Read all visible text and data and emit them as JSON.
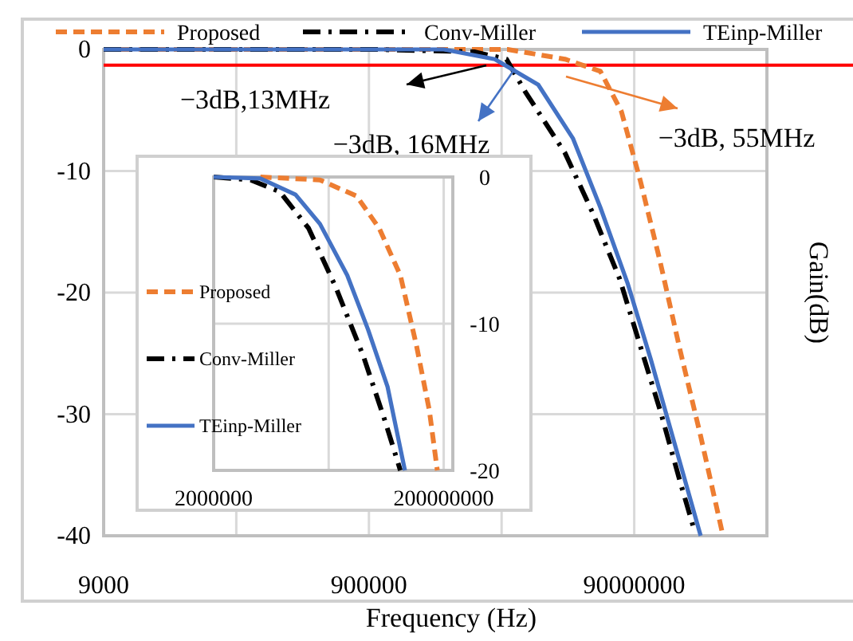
{
  "chart_data": [
    {
      "type": "line",
      "xlabel": "Frequency (Hz)",
      "ylabel": "Gain(dB)",
      "log": "x",
      "grid": true,
      "legend": "top",
      "xlim": [
        9000,
        900000000
      ],
      "xticks": [
        9000,
        {
          "value": 90000,
          "label": null
        },
        900000,
        {
          "value": 9000000,
          "label": null
        },
        90000000,
        {
          "value": 900000000,
          "label": null
        }
      ],
      "ylim": [
        -40,
        0
      ],
      "yticks": [
        0,
        -10,
        -20,
        -30,
        -40
      ],
      "ref_lines": [
        {
          "axis": "y",
          "value": -1.3,
          "color": "#ff0000"
        }
      ],
      "annotations": [
        "−3dB,13MHz",
        "−3dB, 16MHz",
        "−3dB, 55MHz"
      ],
      "series": [
        {
          "name": "Proposed",
          "color": "#ed7d31",
          "line_style": "dashed",
          "x": [
            9000,
            1000000,
            10000000,
            27000000,
            50000000,
            72000000,
            100000000,
            140000000,
            200000000,
            285000000,
            420000000
          ],
          "values": [
            0,
            0,
            0,
            -0.8,
            -1.8,
            -5.1,
            -10.8,
            -17.3,
            -24.8,
            -31.8,
            -40
          ]
        },
        {
          "name": "Conv-Miller",
          "color": "#000000",
          "line_style": "dashdot",
          "x": [
            9000,
            1000000,
            5600000,
            9800000,
            13600000,
            27000000,
            44000000,
            70000000,
            100000000,
            143000000,
            200000000,
            250000000
          ],
          "values": [
            0,
            0,
            -0.2,
            -0.8,
            -3.5,
            -8.5,
            -13.5,
            -18.9,
            -24.4,
            -29.9,
            -35.6,
            -39.2
          ]
        },
        {
          "name": "TEinp-Miller",
          "color": "#4472c4",
          "line_style": "solid",
          "x": [
            9000,
            1000000,
            3300000,
            8000000,
            17000000,
            31000000,
            50000000,
            80000000,
            120000000,
            180000000,
            285000000
          ],
          "values": [
            0,
            0,
            0,
            -0.8,
            -2.9,
            -7.3,
            -13,
            -19.2,
            -25.5,
            -32.3,
            -40
          ]
        }
      ]
    },
    {
      "type": "line",
      "log": "x",
      "grid": true,
      "legend": "left",
      "xlim": [
        2000000,
        240000000
      ],
      "xticks": [
        2000000,
        {
          "value": 20000000,
          "label": null
        },
        200000000
      ],
      "ylim": [
        -20,
        0
      ],
      "yticks": [
        0,
        -10,
        -20
      ],
      "series": [
        {
          "name": "Proposed",
          "color": "#ed7d31",
          "line_style": "dashed",
          "x": [
            5100000,
            16800000,
            35000000,
            55000000,
            84000000,
            116000000,
            150000000,
            176000000
          ],
          "values": [
            0,
            -0.2,
            -1.3,
            -3.5,
            -6.7,
            -11.5,
            -15.9,
            -20
          ]
        },
        {
          "name": "Conv-Miller",
          "color": "#000000",
          "line_style": "dashdot",
          "x": [
            2000000,
            4200000,
            7500000,
            13400000,
            23000000,
            40000000,
            61000000,
            84000000
          ],
          "values": [
            0,
            -0.2,
            -1,
            -3.5,
            -7.5,
            -12.2,
            -16.5,
            -20
          ]
        },
        {
          "name": "TEinp-Miller",
          "color": "#4472c4",
          "line_style": "solid",
          "x": [
            2000000,
            5100000,
            10300000,
            16800000,
            29000000,
            44000000,
            65000000,
            92000000
          ],
          "values": [
            0,
            -0.1,
            -1.2,
            -3.2,
            -6.7,
            -10.4,
            -14.3,
            -20
          ]
        }
      ]
    }
  ]
}
